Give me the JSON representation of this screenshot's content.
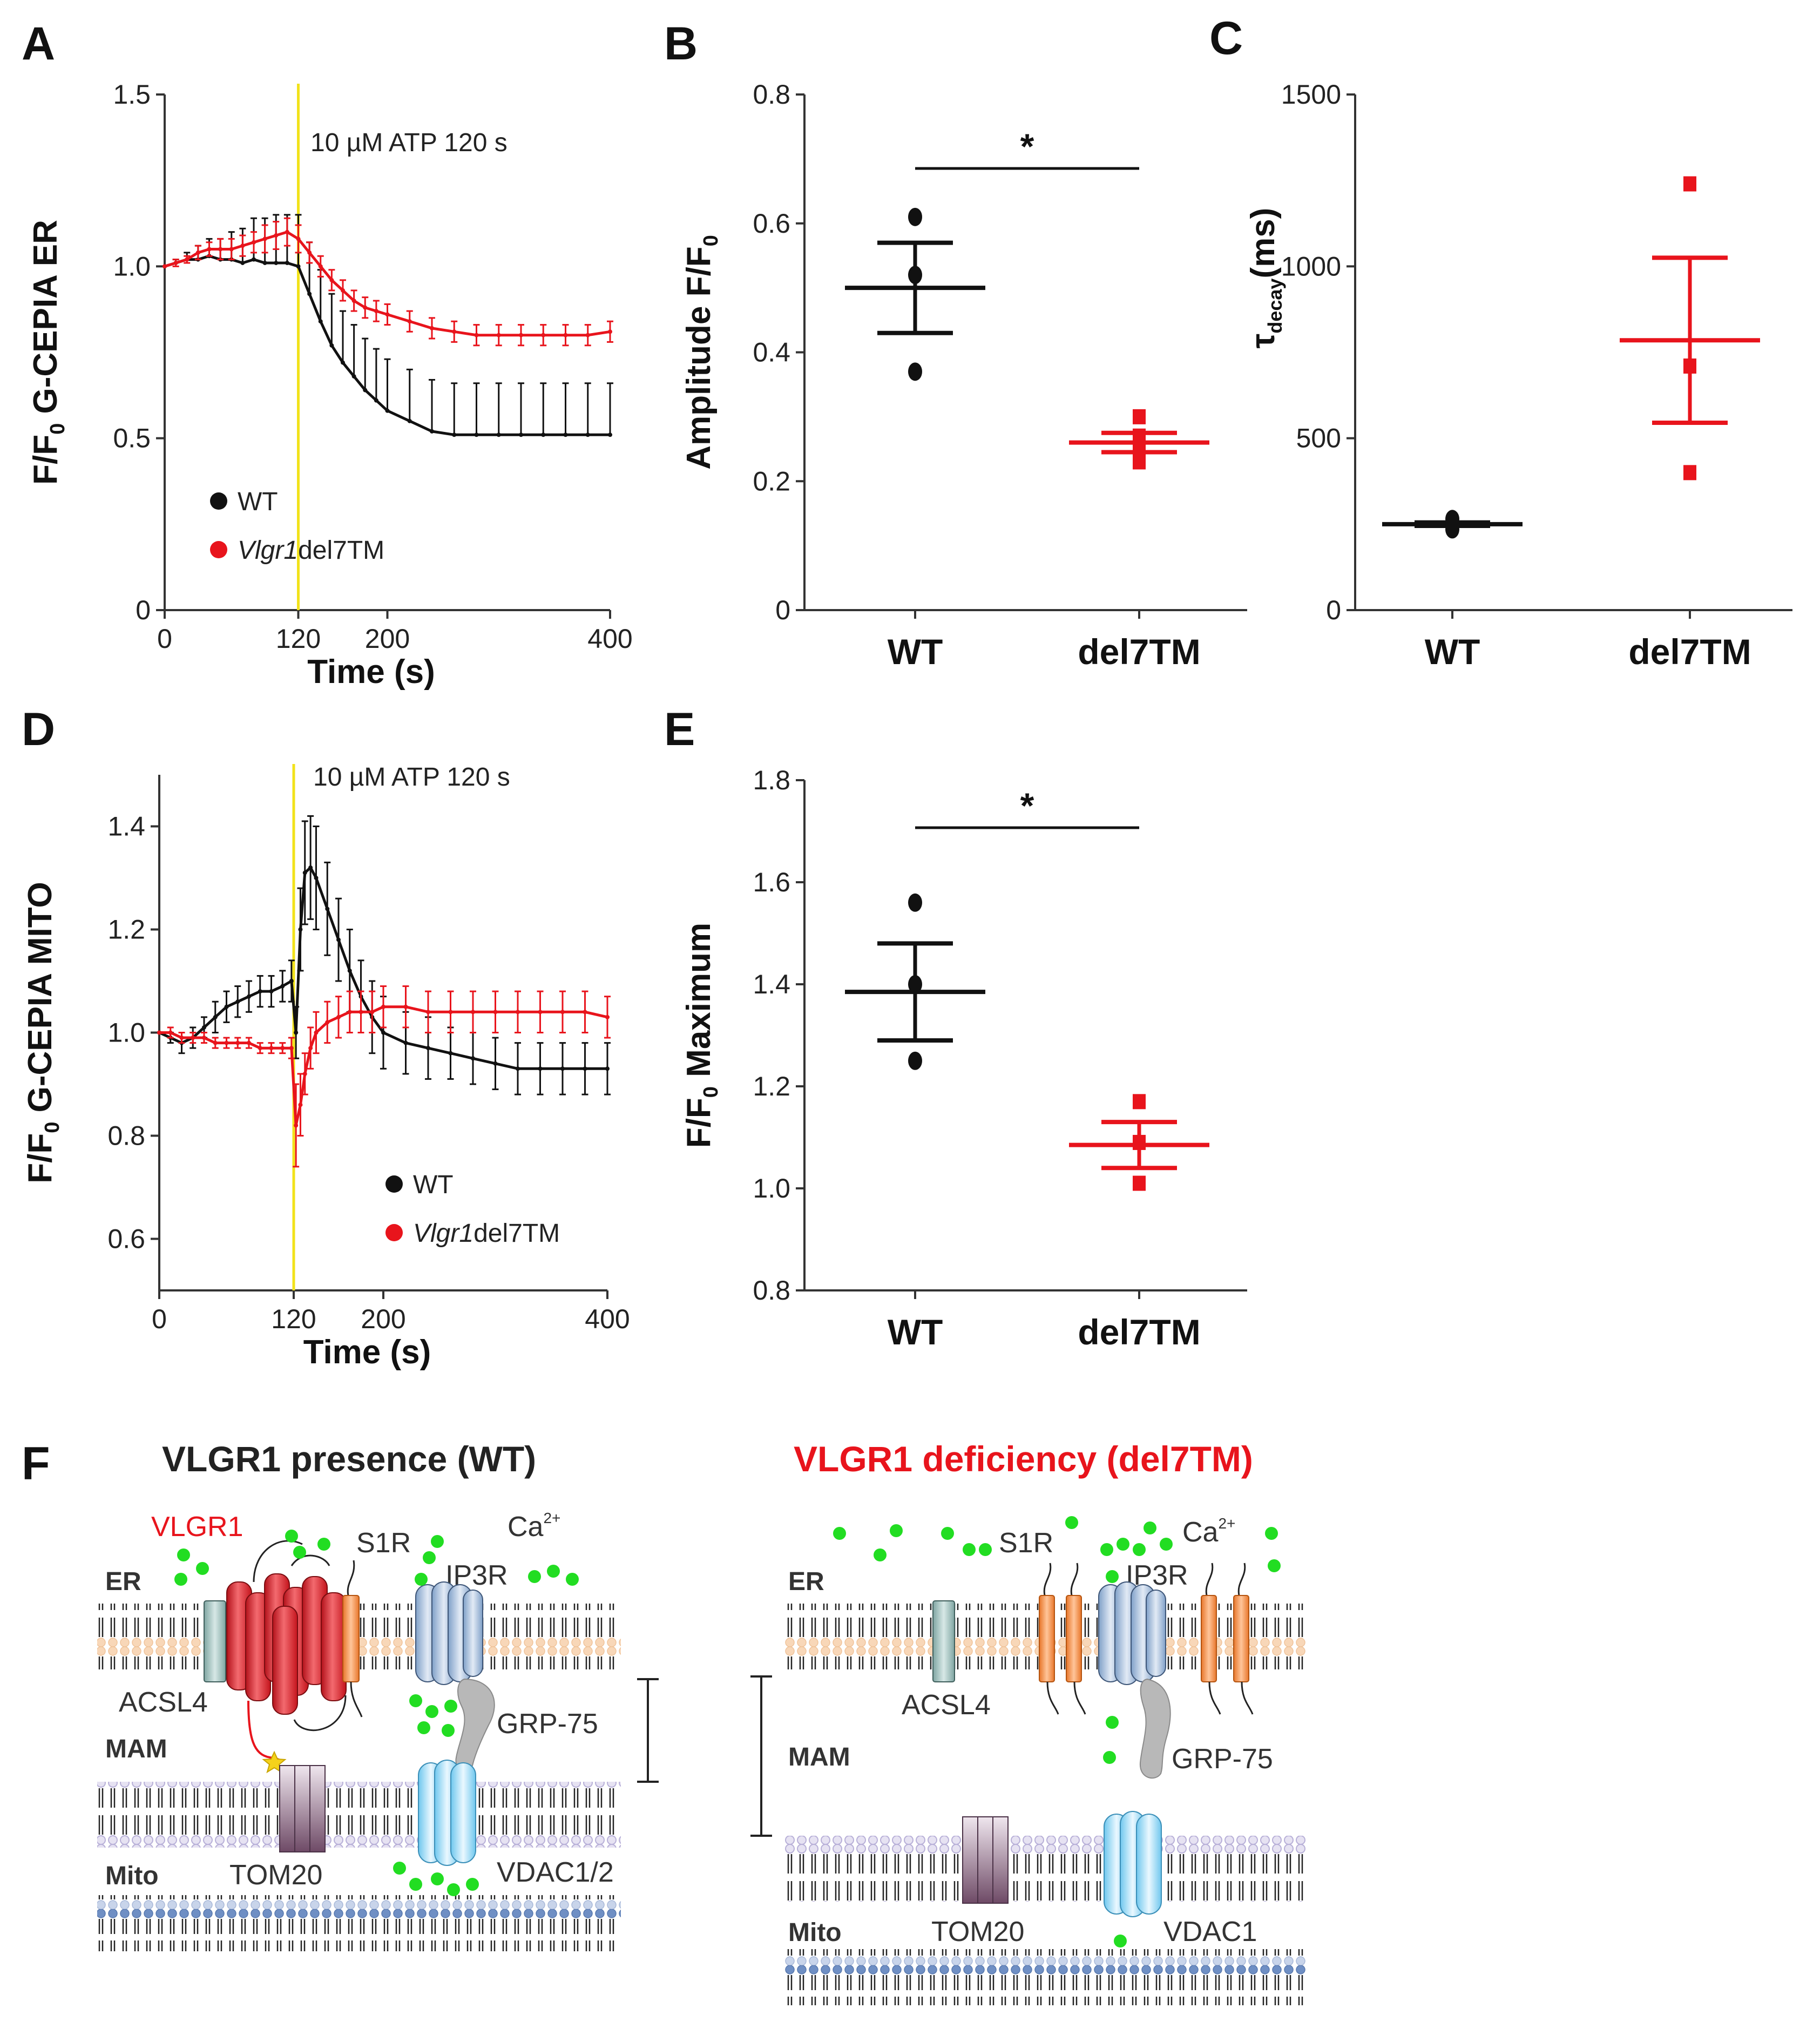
{
  "panels": {
    "A": "A",
    "B": "B",
    "C": "C",
    "D": "D",
    "E": "E",
    "F": "F"
  },
  "colors": {
    "wt": "#111111",
    "del7tm": "#e8141c",
    "stim": "#f2e21a",
    "ca": "#22dd22"
  },
  "stimulus_label": "10 µM ATP 120 s",
  "legend": {
    "wt": "WT",
    "vlgr_italic": "Vlgr1",
    "vlgr_suffix": "del7TM"
  },
  "chart_data": [
    {
      "id": "A",
      "type": "line",
      "ylabel_pre": "F/F",
      "ylabel_sub": "0",
      "ylabel_post": " G-CEPIA ER",
      "xlabel": "Time (s)",
      "xlim": [
        0,
        400
      ],
      "ylim": [
        0,
        1.5
      ],
      "xticks": [
        0,
        120,
        200,
        400
      ],
      "yticks": [
        0,
        0.5,
        1.0,
        1.5
      ],
      "ytick_labels": [
        "0",
        "0.5",
        "1.0",
        "1.5"
      ],
      "series": [
        {
          "name": "WT",
          "x": [
            0,
            10,
            20,
            30,
            40,
            50,
            60,
            70,
            80,
            90,
            100,
            110,
            120,
            130,
            140,
            150,
            160,
            170,
            180,
            190,
            200,
            220,
            240,
            260,
            280,
            300,
            320,
            340,
            360,
            380,
            400
          ],
          "y": [
            1.0,
            1.01,
            1.02,
            1.02,
            1.03,
            1.02,
            1.02,
            1.01,
            1.02,
            1.01,
            1.01,
            1.01,
            1.0,
            0.92,
            0.84,
            0.77,
            0.72,
            0.68,
            0.64,
            0.61,
            0.58,
            0.55,
            0.52,
            0.51,
            0.51,
            0.51,
            0.51,
            0.51,
            0.51,
            0.51,
            0.51
          ],
          "err": [
            0.0,
            0.01,
            0.02,
            0.04,
            0.05,
            0.06,
            0.08,
            0.1,
            0.12,
            0.13,
            0.14,
            0.14,
            0.15,
            0.15,
            0.15,
            0.15,
            0.15,
            0.15,
            0.15,
            0.15,
            0.15,
            0.15,
            0.15,
            0.15,
            0.15,
            0.15,
            0.15,
            0.15,
            0.15,
            0.15,
            0.15
          ]
        },
        {
          "name": "Vlgr1del7TM",
          "x": [
            0,
            10,
            20,
            30,
            40,
            50,
            60,
            70,
            80,
            90,
            100,
            110,
            120,
            130,
            140,
            150,
            160,
            170,
            180,
            190,
            200,
            220,
            240,
            260,
            280,
            300,
            320,
            340,
            360,
            380,
            400
          ],
          "y": [
            1.0,
            1.01,
            1.02,
            1.04,
            1.05,
            1.05,
            1.05,
            1.06,
            1.07,
            1.08,
            1.09,
            1.1,
            1.08,
            1.04,
            1.0,
            0.96,
            0.93,
            0.9,
            0.88,
            0.87,
            0.86,
            0.84,
            0.82,
            0.81,
            0.8,
            0.8,
            0.8,
            0.8,
            0.8,
            0.8,
            0.81
          ],
          "err": [
            0.0,
            0.01,
            0.01,
            0.02,
            0.02,
            0.03,
            0.03,
            0.03,
            0.03,
            0.04,
            0.04,
            0.04,
            0.04,
            0.03,
            0.03,
            0.03,
            0.03,
            0.03,
            0.03,
            0.03,
            0.03,
            0.03,
            0.03,
            0.03,
            0.03,
            0.03,
            0.03,
            0.03,
            0.03,
            0.03,
            0.03
          ]
        }
      ]
    },
    {
      "id": "B",
      "type": "scatter",
      "ylabel_pre": "Amplitude F/F",
      "ylabel_sub": "0",
      "ylabel_post": "",
      "categories": [
        "WT",
        "del7TM"
      ],
      "ylim": [
        0,
        0.8
      ],
      "yticks": [
        0,
        0.2,
        0.4,
        0.6,
        0.8
      ],
      "ytick_labels": [
        "0",
        "0.2",
        "0.4",
        "0.6",
        "0.8"
      ],
      "groups": [
        {
          "name": "WT",
          "points": [
            0.61,
            0.52,
            0.37
          ],
          "mean": 0.5,
          "sem_low": 0.43,
          "sem_high": 0.57
        },
        {
          "name": "del7TM",
          "points": [
            0.3,
            0.27,
            0.26,
            0.24,
            0.23
          ],
          "mean": 0.26,
          "sem_low": 0.245,
          "sem_high": 0.275
        }
      ],
      "significance": "*"
    },
    {
      "id": "C",
      "type": "scatter",
      "ylabel_sym": "τ",
      "ylabel_sub": "decay",
      "ylabel_post": "(ms)",
      "categories": [
        "WT",
        "del7TM"
      ],
      "ylim": [
        0,
        1500
      ],
      "yticks": [
        0,
        500,
        1000,
        1500
      ],
      "ytick_labels": [
        "0",
        "500",
        "1000",
        "1500"
      ],
      "groups": [
        {
          "name": "WT",
          "points": [
            265,
            250,
            235
          ],
          "mean": 250,
          "sem_low": 245,
          "sem_high": 255
        },
        {
          "name": "del7TM",
          "points": [
            1240,
            710,
            400
          ],
          "mean": 785,
          "sem_low": 545,
          "sem_high": 1025
        }
      ]
    },
    {
      "id": "D",
      "type": "line",
      "ylabel_pre": "F/F",
      "ylabel_sub": "0",
      "ylabel_post": " G-CEPIA MITO",
      "xlabel": "Time (s)",
      "xlim": [
        0,
        400
      ],
      "ylim": [
        0.5,
        1.5
      ],
      "xticks": [
        0,
        120,
        200,
        400
      ],
      "yticks": [
        0.6,
        0.8,
        1.0,
        1.2,
        1.4
      ],
      "ytick_labels": [
        "0.6",
        "0.8",
        "1.0",
        "1.2",
        "1.4"
      ],
      "series": [
        {
          "name": "WT",
          "x": [
            0,
            10,
            20,
            30,
            40,
            50,
            60,
            70,
            80,
            90,
            100,
            110,
            118,
            122,
            126,
            130,
            135,
            140,
            150,
            160,
            170,
            180,
            190,
            200,
            220,
            240,
            260,
            280,
            300,
            320,
            340,
            360,
            380,
            400
          ],
          "y": [
            1.0,
            0.99,
            0.98,
            0.99,
            1.01,
            1.03,
            1.05,
            1.06,
            1.07,
            1.08,
            1.08,
            1.09,
            1.1,
            1.0,
            1.2,
            1.31,
            1.32,
            1.3,
            1.24,
            1.18,
            1.12,
            1.07,
            1.03,
            1.0,
            0.98,
            0.97,
            0.96,
            0.95,
            0.94,
            0.93,
            0.93,
            0.93,
            0.93,
            0.93
          ],
          "err": [
            0.0,
            0.01,
            0.02,
            0.02,
            0.02,
            0.03,
            0.03,
            0.03,
            0.03,
            0.03,
            0.03,
            0.03,
            0.04,
            0.05,
            0.08,
            0.1,
            0.1,
            0.1,
            0.09,
            0.08,
            0.08,
            0.07,
            0.07,
            0.07,
            0.06,
            0.06,
            0.05,
            0.05,
            0.05,
            0.05,
            0.05,
            0.05,
            0.05,
            0.05
          ]
        },
        {
          "name": "Vlgr1del7TM",
          "x": [
            0,
            10,
            20,
            30,
            40,
            50,
            60,
            70,
            80,
            90,
            100,
            110,
            118,
            122,
            126,
            130,
            135,
            140,
            150,
            160,
            170,
            180,
            190,
            200,
            220,
            240,
            260,
            280,
            300,
            320,
            340,
            360,
            380,
            400
          ],
          "y": [
            1.0,
            1.0,
            0.99,
            0.99,
            0.99,
            0.98,
            0.98,
            0.98,
            0.98,
            0.97,
            0.97,
            0.97,
            0.97,
            0.82,
            0.86,
            0.92,
            0.97,
            1.0,
            1.02,
            1.03,
            1.04,
            1.04,
            1.04,
            1.05,
            1.05,
            1.04,
            1.04,
            1.04,
            1.04,
            1.04,
            1.04,
            1.04,
            1.04,
            1.03
          ],
          "err": [
            0.0,
            0.01,
            0.01,
            0.01,
            0.01,
            0.01,
            0.01,
            0.01,
            0.01,
            0.01,
            0.01,
            0.01,
            0.02,
            0.08,
            0.06,
            0.04,
            0.04,
            0.04,
            0.04,
            0.04,
            0.04,
            0.04,
            0.04,
            0.04,
            0.04,
            0.04,
            0.04,
            0.04,
            0.04,
            0.04,
            0.04,
            0.04,
            0.04,
            0.04
          ]
        }
      ]
    },
    {
      "id": "E",
      "type": "scatter",
      "ylabel_pre": "F/F",
      "ylabel_sub": "0",
      "ylabel_post": " Maximum",
      "categories": [
        "WT",
        "del7TM"
      ],
      "ylim": [
        0.8,
        1.8
      ],
      "yticks": [
        0.8,
        1.0,
        1.2,
        1.4,
        1.6,
        1.8
      ],
      "ytick_labels": [
        "0.8",
        "1.0",
        "1.2",
        "1.4",
        "1.6",
        "1.8"
      ],
      "groups": [
        {
          "name": "WT",
          "points": [
            1.56,
            1.4,
            1.25
          ],
          "mean": 1.385,
          "sem_low": 1.29,
          "sem_high": 1.48
        },
        {
          "name": "del7TM",
          "points": [
            1.17,
            1.09,
            1.01
          ],
          "mean": 1.085,
          "sem_low": 1.04,
          "sem_high": 1.13
        }
      ],
      "significance": "*"
    }
  ],
  "diagram": {
    "wt_title": "VLGR1  presence (WT)",
    "del_title": "VLGR1 deficiency (del7TM)",
    "labels": {
      "vlgr1": "VLGR1",
      "s1r": "S1R",
      "ca": "Ca",
      "ca_sup": "2+",
      "er": "ER",
      "ip3r": "IP3R",
      "acsl4": "ACSL4",
      "grp75": "GRP-75",
      "mam": "MAM",
      "mito": "Mito",
      "tom20": "TOM20",
      "vdac12": "VDAC1/2",
      "vdac1": "VDAC1"
    }
  }
}
